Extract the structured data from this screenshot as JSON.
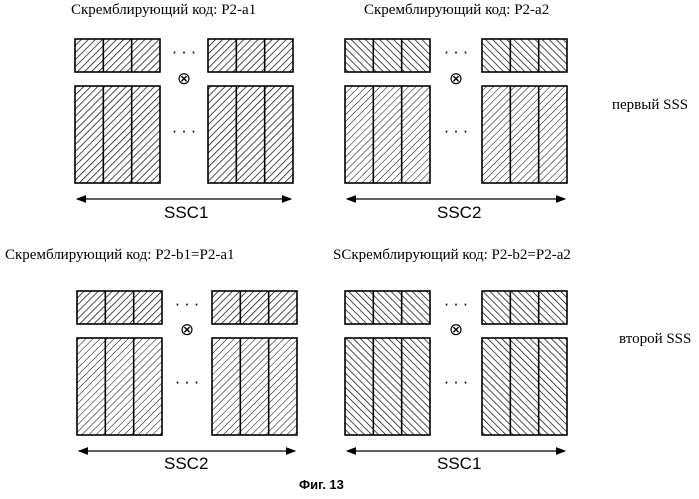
{
  "figure_caption": "Фиг. 13",
  "rows": [
    {
      "side_label": "первый SSS",
      "panels": [
        {
          "code_label": "Скремблирующий код: P2-a1",
          "ssc_label": "SSC1",
          "scramble_hatch": "hatch-a",
          "seq_hatch": "hatch-a",
          "seq_fill": "dense"
        },
        {
          "code_label": "Скремблирующий код: P2-a2",
          "ssc_label": "SSC2",
          "scramble_hatch": "hatch-b",
          "seq_hatch": "hatch-a",
          "seq_fill": "light"
        }
      ]
    },
    {
      "side_label": "второй SSS",
      "panels": [
        {
          "code_label": "Скремблирующий код: P2-b1=P2-a1",
          "ssc_label": "SSC2",
          "scramble_hatch": "hatch-a",
          "seq_hatch": "hatch-a",
          "seq_fill": "light"
        },
        {
          "code_label": "SСкремблирующий код: P2-b2=P2-a2",
          "ssc_label": "SSC1",
          "scramble_hatch": "hatch-b",
          "seq_hatch": "hatch-b",
          "seq_fill": "dense"
        }
      ]
    }
  ],
  "ellipsis": "· · ·",
  "multiply_symbol": "⊗"
}
